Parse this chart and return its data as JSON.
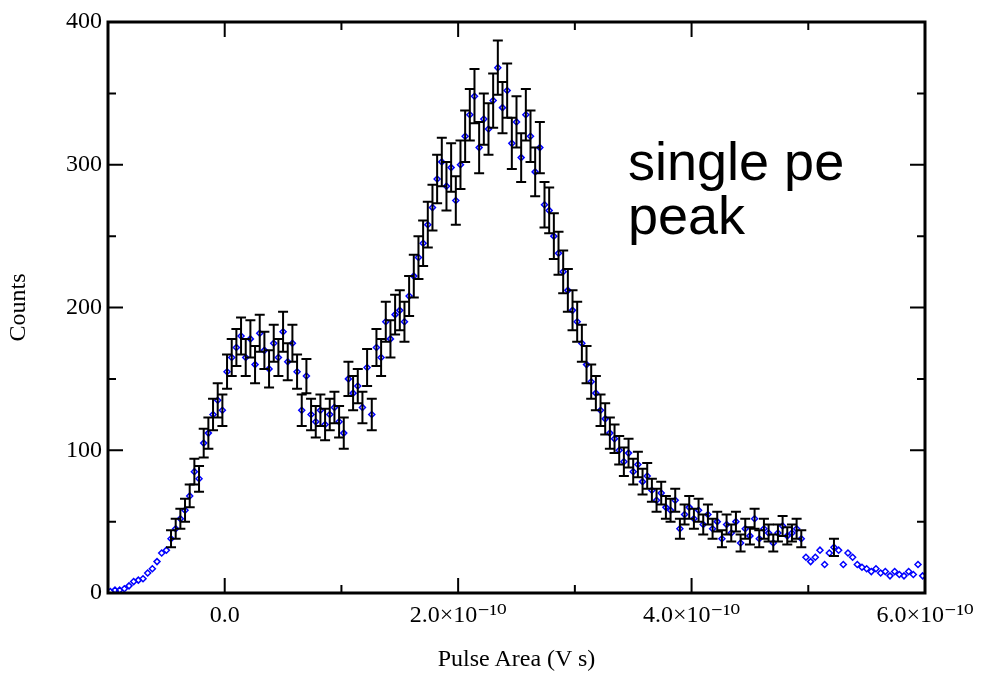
{
  "chart_data": {
    "type": "scatter",
    "xlabel": "Pulse Area (V s)",
    "ylabel": "Counts",
    "annotations": [
      "single pe peak"
    ],
    "marker": "diamond",
    "grid": false,
    "legend": false,
    "xlim": [
      -1e-10,
      6e-10
    ],
    "ylim": [
      0,
      400
    ],
    "xticks": [
      {
        "value": 0,
        "label": "0.0"
      },
      {
        "value": 1e-10,
        "label": null
      },
      {
        "value": 2e-10,
        "label": "2.0×10⁻¹⁰"
      },
      {
        "value": 3e-10,
        "label": null
      },
      {
        "value": 4e-10,
        "label": "4.0×10⁻¹⁰"
      },
      {
        "value": 5e-10,
        "label": null
      },
      {
        "value": 6e-10,
        "label": "6.0×10⁻¹⁰"
      }
    ],
    "yticks": [
      0,
      {
        "value": 50,
        "label": null
      },
      100,
      {
        "value": 150,
        "label": null
      },
      200,
      {
        "value": 250,
        "label": null
      },
      300,
      {
        "value": 350,
        "label": null
      },
      400
    ],
    "series": [
      {
        "color": "#0000ff",
        "x": [
          -9.8e-11,
          -9.4e-11,
          -9e-11,
          -8.6e-11,
          -8.2e-11,
          -7.8e-11,
          -7.4e-11,
          -7e-11,
          -6.6e-11,
          -6.2e-11,
          -5.8e-11,
          -5.4e-11,
          -5e-11,
          -4.6e-11,
          -4.2e-11,
          -3.8e-11,
          -3.4e-11,
          -3e-11,
          -2.6e-11,
          -2.2e-11,
          -1.8e-11,
          -1.4e-11,
          -1e-11,
          -6e-12,
          -2e-12,
          2e-12,
          6e-12,
          1e-11,
          1.4e-11,
          1.8e-11,
          2.2e-11,
          2.6e-11,
          3e-11,
          3.4e-11,
          3.8e-11,
          4.2e-11,
          4.6e-11,
          5e-11,
          5.4e-11,
          5.8e-11,
          6.2e-11,
          6.6e-11,
          7e-11,
          7.4e-11,
          7.8e-11,
          8.2e-11,
          8.6e-11,
          9e-11,
          9.4e-11,
          9.8e-11,
          1.02e-10,
          1.06e-10,
          1.1e-10,
          1.14e-10,
          1.18e-10,
          1.22e-10,
          1.26e-10,
          1.3e-10,
          1.34e-10,
          1.38e-10,
          1.42e-10,
          1.46e-10,
          1.5e-10,
          1.54e-10,
          1.58e-10,
          1.62e-10,
          1.66e-10,
          1.7e-10,
          1.74e-10,
          1.78e-10,
          1.82e-10,
          1.86e-10,
          1.9e-10,
          1.94e-10,
          1.98e-10,
          2.02e-10,
          2.06e-10,
          2.1e-10,
          2.14e-10,
          2.18e-10,
          2.22e-10,
          2.26e-10,
          2.3e-10,
          2.34e-10,
          2.38e-10,
          2.42e-10,
          2.46e-10,
          2.5e-10,
          2.54e-10,
          2.58e-10,
          2.62e-10,
          2.66e-10,
          2.7e-10,
          2.74e-10,
          2.78e-10,
          2.82e-10,
          2.86e-10,
          2.9e-10,
          2.94e-10,
          2.98e-10,
          3.02e-10,
          3.06e-10,
          3.1e-10,
          3.14e-10,
          3.18e-10,
          3.22e-10,
          3.26e-10,
          3.3e-10,
          3.34e-10,
          3.38e-10,
          3.42e-10,
          3.46e-10,
          3.5e-10,
          3.54e-10,
          3.58e-10,
          3.62e-10,
          3.66e-10,
          3.7e-10,
          3.74e-10,
          3.78e-10,
          3.82e-10,
          3.86e-10,
          3.9e-10,
          3.94e-10,
          3.98e-10,
          4.02e-10,
          4.06e-10,
          4.1e-10,
          4.14e-10,
          4.18e-10,
          4.22e-10,
          4.26e-10,
          4.3e-10,
          4.34e-10,
          4.38e-10,
          4.42e-10,
          4.46e-10,
          4.5e-10,
          4.54e-10,
          4.58e-10,
          4.62e-10,
          4.66e-10,
          4.7e-10,
          4.74e-10,
          4.78e-10,
          4.82e-10,
          4.86e-10,
          4.9e-10,
          4.94e-10,
          4.98e-10,
          5.02e-10,
          5.06e-10,
          5.1e-10,
          5.14e-10,
          5.18e-10,
          5.22e-10,
          5.26e-10,
          5.3e-10,
          5.34e-10,
          5.38e-10,
          5.42e-10,
          5.46e-10,
          5.5e-10,
          5.54e-10,
          5.58e-10,
          5.62e-10,
          5.66e-10,
          5.7e-10,
          5.74e-10,
          5.78e-10,
          5.82e-10,
          5.86e-10,
          5.9e-10,
          5.94e-10,
          5.98e-10
        ],
        "values": [
          1,
          2,
          2,
          3,
          5,
          8,
          9,
          10,
          14,
          17,
          22,
          28,
          30,
          38,
          45,
          52,
          58,
          68,
          85,
          80,
          105,
          112,
          125,
          135,
          128,
          155,
          165,
          172,
          180,
          165,
          178,
          160,
          182,
          170,
          157,
          175,
          165,
          183,
          162,
          175,
          155,
          128,
          152,
          125,
          120,
          128,
          118,
          125,
          130,
          120,
          112,
          150,
          140,
          145,
          130,
          158,
          125,
          172,
          165,
          190,
          178,
          195,
          198,
          190,
          208,
          222,
          235,
          245,
          258,
          270,
          290,
          302,
          285,
          298,
          275,
          300,
          320,
          335,
          348,
          312,
          332,
          325,
          345,
          368,
          340,
          352,
          315,
          330,
          305,
          335,
          320,
          295,
          312,
          272,
          268,
          250,
          238,
          225,
          212,
          198,
          190,
          175,
          160,
          148,
          140,
          128,
          122,
          112,
          108,
          100,
          92,
          98,
          85,
          90,
          78,
          82,
          72,
          65,
          70,
          60,
          58,
          65,
          45,
          55,
          60,
          52,
          58,
          48,
          55,
          45,
          50,
          38,
          48,
          42,
          50,
          35,
          45,
          40,
          52,
          38,
          45,
          42,
          35,
          42,
          47,
          40,
          42,
          45,
          38,
          25,
          22,
          25,
          30,
          20,
          28,
          32,
          30,
          20,
          28,
          25,
          20,
          18,
          17,
          15,
          17,
          14,
          15,
          12,
          15,
          13,
          12,
          15,
          13,
          20,
          12
        ],
        "errors": [
          null,
          null,
          null,
          null,
          null,
          null,
          null,
          null,
          null,
          null,
          null,
          null,
          null,
          6,
          7,
          7,
          8,
          8,
          9,
          9,
          10,
          11,
          11,
          12,
          11,
          12,
          13,
          13,
          13,
          13,
          13,
          13,
          13,
          13,
          13,
          13,
          13,
          14,
          13,
          13,
          12,
          11,
          12,
          11,
          11,
          11,
          11,
          11,
          11,
          11,
          11,
          12,
          12,
          12,
          11,
          13,
          11,
          13,
          13,
          14,
          13,
          14,
          14,
          14,
          14,
          15,
          15,
          16,
          16,
          16,
          17,
          17,
          17,
          17,
          17,
          17,
          18,
          18,
          19,
          18,
          18,
          18,
          19,
          19,
          18,
          19,
          18,
          18,
          17,
          18,
          18,
          17,
          18,
          16,
          16,
          16,
          15,
          15,
          15,
          14,
          14,
          13,
          13,
          12,
          12,
          11,
          11,
          11,
          10,
          10,
          10,
          10,
          9,
          9,
          9,
          9,
          8,
          8,
          8,
          8,
          8,
          8,
          7,
          7,
          8,
          7,
          8,
          7,
          7,
          7,
          7,
          6,
          7,
          6,
          7,
          6,
          7,
          6,
          7,
          6,
          7,
          6,
          6,
          6,
          7,
          6,
          6,
          7,
          6,
          null,
          null,
          null,
          null,
          null,
          null,
          6,
          null,
          null,
          null,
          null,
          null,
          null,
          null,
          null,
          null,
          null,
          null,
          null,
          null,
          null,
          null,
          null,
          null,
          null,
          null
        ]
      }
    ]
  }
}
